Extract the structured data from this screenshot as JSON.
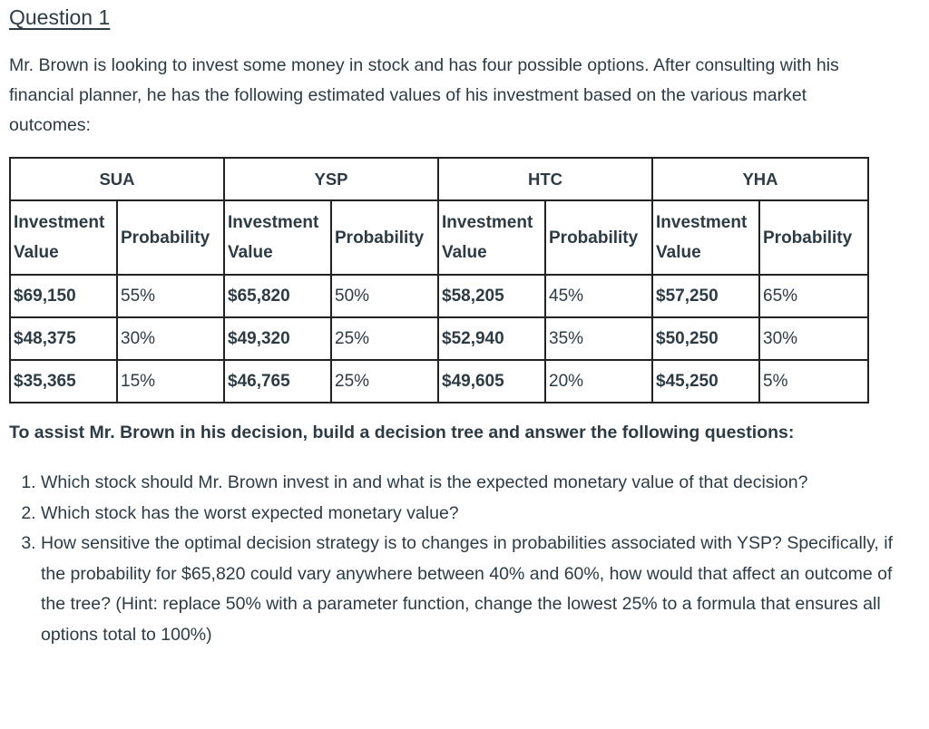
{
  "title": "Question 1",
  "intro": "Mr. Brown is looking to invest some money in stock and has four possible options. After consulting with his financial planner, he has the following estimated values of his investment based on the various market outcomes:",
  "table": {
    "groups": [
      "SUA",
      "YSP",
      "HTC",
      "YHA"
    ],
    "value_header": "Investment Value",
    "prob_header": "Probability",
    "rows": [
      [
        "$69,150",
        "55%",
        "$65,820",
        "50%",
        "$58,205",
        "45%",
        "$57,250",
        "65%"
      ],
      [
        "$48,375",
        "30%",
        "$49,320",
        "25%",
        "$52,940",
        "35%",
        "$50,250",
        "30%"
      ],
      [
        "$35,365",
        "15%",
        "$46,765",
        "25%",
        "$49,605",
        "20%",
        "$45,250",
        "5%"
      ]
    ]
  },
  "assist": "To assist Mr. Brown in his decision, build a decision tree and answer the following questions:",
  "questions": [
    "Which stock should Mr. Brown invest in and what is the expected monetary value of that decision?",
    "Which stock has the worst expected monetary value?",
    "How sensitive the optimal decision strategy is to changes in probabilities associated with YSP? Specifically, if the probability for $65,820 could vary anywhere between 40% and 60%, how would that affect an outcome of the tree? (Hint: replace 50% with a parameter function, change the lowest 25% to a formula that ensures all options total to 100%)"
  ]
}
